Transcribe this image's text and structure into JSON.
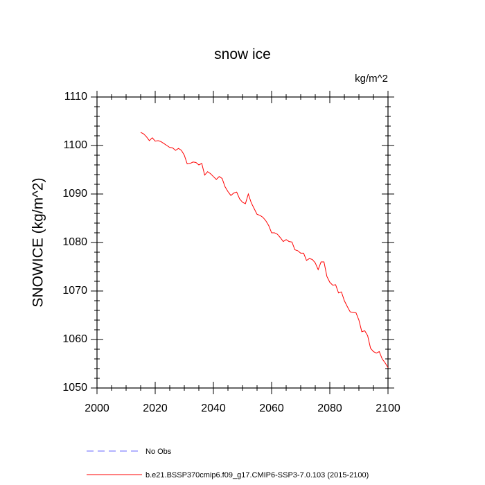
{
  "chart_data": {
    "type": "line",
    "title": "snow ice",
    "units": "kg/m^2",
    "ylabel": "SNOWICE  (kg/m^2)",
    "xlim": [
      2000,
      2100
    ],
    "xticks": [
      2000,
      2020,
      2040,
      2060,
      2080,
      2100
    ],
    "ylim": [
      1050,
      1110
    ],
    "yticks": [
      1050,
      1060,
      1070,
      1080,
      1090,
      1100,
      1110
    ],
    "x": [
      2015,
      2016,
      2017,
      2018,
      2019,
      2020,
      2021,
      2022,
      2023,
      2024,
      2025,
      2026,
      2027,
      2028,
      2029,
      2030,
      2031,
      2032,
      2033,
      2034,
      2035,
      2036,
      2037,
      2038,
      2039,
      2040,
      2041,
      2042,
      2043,
      2044,
      2045,
      2046,
      2047,
      2048,
      2049,
      2050,
      2051,
      2052,
      2053,
      2054,
      2055,
      2056,
      2057,
      2058,
      2059,
      2060,
      2061,
      2062,
      2063,
      2064,
      2065,
      2066,
      2067,
      2068,
      2069,
      2070,
      2071,
      2072,
      2073,
      2074,
      2075,
      2076,
      2077,
      2078,
      2079,
      2080,
      2081,
      2082,
      2083,
      2084,
      2085,
      2086,
      2087,
      2088,
      2089,
      2090,
      2091,
      2092,
      2093,
      2094,
      2095,
      2096,
      2097,
      2098,
      2099,
      2100
    ],
    "series": [
      {
        "name": "b.e21.BSSP370cmip6.f09_g17.CMIP6-SSP3-7.0.103 (2015-2100)",
        "color": "#ff0000",
        "values": [
          1102.7,
          1102.4,
          1101.8,
          1101.0,
          1101.6,
          1100.9,
          1101.0,
          1100.8,
          1100.4,
          1100.0,
          1099.6,
          1099.5,
          1099.0,
          1099.4,
          1099.0,
          1098.0,
          1096.2,
          1096.3,
          1096.6,
          1096.5,
          1096.0,
          1096.3,
          1093.9,
          1094.6,
          1094.2,
          1093.6,
          1093.0,
          1093.6,
          1093.2,
          1091.5,
          1090.5,
          1089.7,
          1090.2,
          1090.4,
          1089.0,
          1088.3,
          1088.0,
          1090.0,
          1088.2,
          1087.0,
          1085.8,
          1085.6,
          1085.2,
          1084.5,
          1083.5,
          1082.0,
          1082.0,
          1081.7,
          1081.0,
          1080.2,
          1080.6,
          1080.2,
          1080.1,
          1078.5,
          1078.3,
          1077.8,
          1077.8,
          1076.3,
          1076.7,
          1076.5,
          1075.8,
          1074.4,
          1076.0,
          1076.0,
          1073.0,
          1071.8,
          1071.2,
          1071.3,
          1069.6,
          1069.8,
          1068.0,
          1066.8,
          1065.7,
          1065.6,
          1065.5,
          1064.0,
          1061.6,
          1061.8,
          1060.8,
          1058.2,
          1057.5,
          1057.2,
          1057.5,
          1056.0,
          1055.2,
          1054.2
        ]
      }
    ],
    "reference": {
      "name": "No Obs",
      "color": "#6666ff",
      "dash": true
    }
  }
}
